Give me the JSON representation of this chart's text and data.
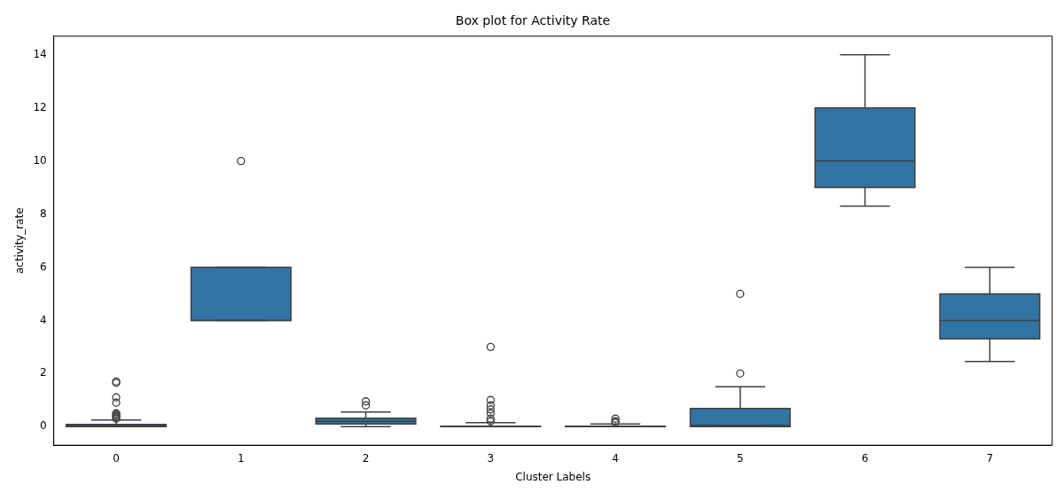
{
  "chart_data": {
    "type": "box",
    "title": "Box plot for Activity Rate",
    "xlabel": "Cluster Labels",
    "ylabel": "activity_rate",
    "categories": [
      "0",
      "1",
      "2",
      "3",
      "4",
      "5",
      "6",
      "7"
    ],
    "ylim": [
      -0.7,
      14.7
    ],
    "yticks": [
      0,
      2,
      4,
      6,
      8,
      10,
      12,
      14
    ],
    "grid": false,
    "legend": false,
    "series": [
      {
        "color": "#3274a1",
        "boxes": [
          {
            "low": 0,
            "q1": 0,
            "median": 0.03,
            "q3": 0.08,
            "high": 0.25,
            "outliers": [
              1.7,
              1.65,
              1.1,
              0.9,
              0.5,
              0.45,
              0.4,
              0.35,
              0.3
            ]
          },
          {
            "low": 4,
            "q1": 4,
            "median": 4,
            "q3": 6,
            "high": 6,
            "outliers": [
              10
            ]
          },
          {
            "low": 0,
            "q1": 0.1,
            "median": 0.2,
            "q3": 0.32,
            "high": 0.55,
            "outliers": [
              0.8,
              0.95
            ]
          },
          {
            "low": 0,
            "q1": 0,
            "median": 0.01,
            "q3": 0.02,
            "high": 0.15,
            "outliers": [
              0.2,
              0.3,
              0.5,
              0.65,
              0.8,
              1.0,
              3.0
            ]
          },
          {
            "low": 0,
            "q1": 0,
            "median": 0.01,
            "q3": 0.02,
            "high": 0.1,
            "outliers": [
              0.15,
              0.2,
              0.3
            ]
          },
          {
            "low": 0,
            "q1": 0,
            "median": 0.05,
            "q3": 0.68,
            "high": 1.5,
            "outliers": [
              2,
              5
            ]
          },
          {
            "low": 8.3,
            "q1": 9,
            "median": 10,
            "q3": 12,
            "high": 14
          },
          {
            "low": 2.45,
            "q1": 3.3,
            "median": 4,
            "q3": 5,
            "high": 6
          }
        ]
      }
    ]
  }
}
